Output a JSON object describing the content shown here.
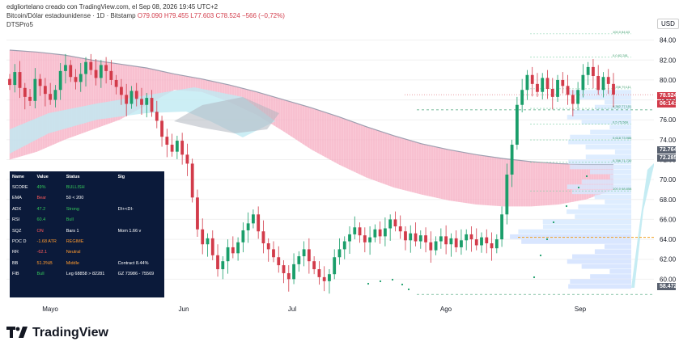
{
  "header": {
    "line1": "edgliortelano creado con TradingView.com, el Sep 08, 2026 19:45 UTC+2",
    "symbol": "Bitcoin/Dólar estadounidense · 1D · Bitstamp",
    "o": "O79.090",
    "h": "H79.455",
    "l": "L77.603",
    "c": "C78.524",
    "chg": "−566 (−0,72%)",
    "indicator": "DTSPro5"
  },
  "axis": {
    "currency": "USD"
  },
  "price_tags": [
    {
      "value": "78.524",
      "color": "#d23b4a"
    },
    {
      "value": "06:14:36",
      "color": "#d23b4a"
    },
    {
      "value": "72.764",
      "color": "#5a6270"
    },
    {
      "value": "72.285",
      "color": "#5a6270"
    },
    {
      "value": "58.472",
      "color": "#5a6270"
    }
  ],
  "table": {
    "headers": [
      "Name",
      "Value",
      "Status",
      "Sig"
    ],
    "rows": [
      {
        "name": "SCORE",
        "value": "49%",
        "status": "BULLISH",
        "sig": "",
        "vc": "c-green",
        "sc": "c-green"
      },
      {
        "name": "EMA",
        "value": "Bear",
        "status": "50 < 200",
        "sig": "",
        "vc": "c-red",
        "sc": "c-white"
      },
      {
        "name": "ADX",
        "value": "47.2",
        "status": "Strong",
        "sig": "DI+<DI-",
        "vc": "c-green",
        "sc": "c-green"
      },
      {
        "name": "RSI",
        "value": "60.4",
        "status": "Bull",
        "sig": "",
        "vc": "c-green",
        "sc": "c-green"
      },
      {
        "name": "SQZ",
        "value": "ON",
        "status": "Bars 1",
        "sig": "Mom 1.66 v",
        "vc": "c-red",
        "sc": "c-white"
      },
      {
        "name": "POC D",
        "value": "-1.68 ATR",
        "status": "REGIME",
        "sig": "",
        "vc": "c-orange",
        "sc": "c-orange"
      },
      {
        "name": "RR",
        "value": "-62.1",
        "status": "Neutral",
        "sig": "",
        "vc": "c-red",
        "sc": "c-orange"
      },
      {
        "name": "BB",
        "value": "51.3%B",
        "status": "Middle",
        "sig": "Contract 8.44%",
        "vc": "c-orange",
        "sc": "c-orange"
      },
      {
        "name": "FIB",
        "value": "Bull",
        "status": "Leg 68858 > 82281",
        "sig": "GZ 73986 - 75569",
        "vc": "c-green",
        "sc": "c-white"
      }
    ]
  },
  "footer": {
    "brand": "TradingView"
  },
  "chart_data": {
    "type": "candlestick",
    "x_labels": [
      "Mayo",
      "Jun",
      "Jul",
      "Ago",
      "Sep"
    ],
    "y_ticks": [
      60.0,
      62.0,
      64.0,
      66.0,
      68.0,
      70.0,
      72.0,
      74.0,
      76.0,
      78.0,
      80.0,
      82.0,
      84.0
    ],
    "ylim": [
      58,
      86
    ],
    "last_close": 78.524,
    "closes": [
      79.5,
      80.8,
      79.2,
      78.3,
      77.9,
      80.1,
      79.4,
      78.6,
      78.0,
      79.0,
      80.9,
      81.5,
      80.3,
      79.8,
      80.6,
      81.8,
      81.0,
      80.2,
      81.5,
      80.9,
      80.0,
      79.3,
      78.5,
      77.6,
      78.9,
      78.1,
      77.5,
      78.2,
      76.8,
      75.9,
      74.3,
      73.5,
      72.8,
      73.9,
      72.5,
      71.6,
      68.2,
      65.0,
      63.5,
      64.1,
      62.4,
      61.0,
      61.8,
      63.2,
      62.6,
      63.7,
      64.9,
      65.6,
      66.5,
      64.8,
      63.6,
      63.0,
      62.2,
      61.4,
      60.6,
      60.0,
      61.5,
      62.3,
      63.0,
      61.8,
      61.0,
      60.2,
      59.8,
      60.5,
      62.2,
      63.0,
      63.8,
      64.5,
      65.2,
      64.4,
      63.7,
      64.2,
      65.0,
      64.3,
      65.1,
      66.0,
      65.3,
      64.8,
      63.9,
      64.6,
      63.8,
      64.4,
      63.7,
      62.9,
      63.8,
      64.3,
      63.5,
      64.1,
      63.2,
      63.9,
      64.5,
      64.0,
      63.4,
      64.2,
      63.6,
      63.1,
      64.0,
      66.5,
      70.5,
      73.5,
      77.5,
      79.0,
      80.5,
      79.6,
      78.8,
      80.2,
      79.1,
      78.3,
      80.0,
      79.4,
      78.5,
      77.6,
      79.0,
      80.5,
      81.3,
      80.4,
      79.0,
      80.3,
      79.6,
      78.524
    ],
    "cloud_upper": [
      83.0,
      82.8,
      82.5,
      82.0,
      81.6,
      81.2,
      80.6,
      80.1,
      79.5,
      78.8,
      78.0,
      77.2,
      76.3,
      75.3,
      74.4,
      73.6,
      73.0,
      72.5,
      72.1,
      71.8,
      71.6,
      71.5,
      71.5
    ],
    "cloud_lower": [
      72.0,
      72.8,
      74.0,
      75.0,
      76.0,
      77.5,
      79.0,
      78.8,
      77.8,
      76.5,
      74.8,
      73.0,
      71.5,
      70.2,
      69.2,
      68.5,
      67.9,
      67.5,
      67.3,
      67.3,
      67.5,
      68.0,
      69.0
    ],
    "fib_levels": [
      {
        "label": "100.0 84.63",
        "value": 84.63
      },
      {
        "label": "0.0 82.281",
        "value": 82.281
      },
      {
        "label": "0.236 79.111",
        "value": 79.111
      },
      {
        "label": "0.382 77.151",
        "value": 77.151
      },
      {
        "label": "0.5 75.569",
        "value": 75.569
      },
      {
        "label": "0.618 73.986",
        "value": 73.986
      },
      {
        "label": "0.786 71.730",
        "value": 71.73
      },
      {
        "label": "100.0 68.858",
        "value": 68.858
      }
    ],
    "poc_level": 64.2,
    "low_level": 58.472
  }
}
